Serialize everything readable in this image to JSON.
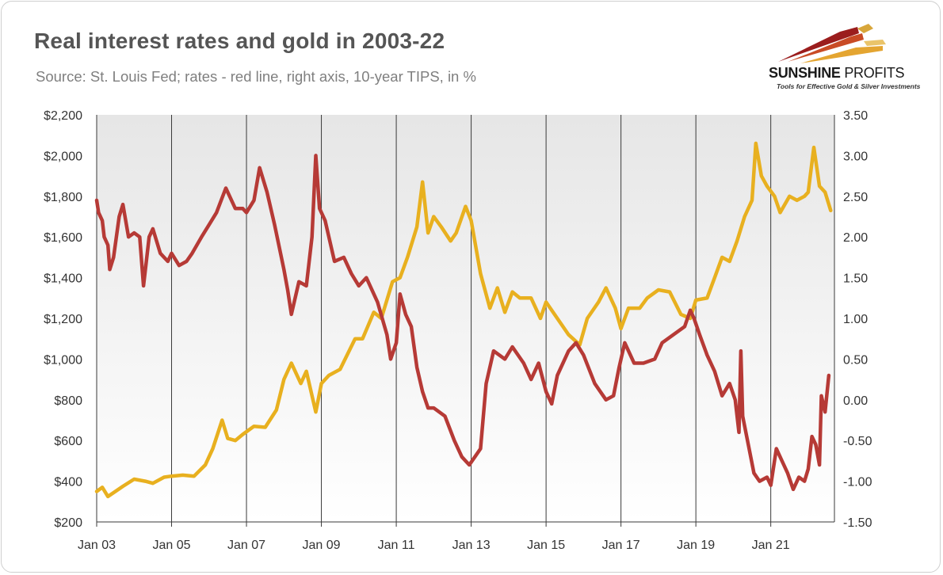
{
  "header": {
    "title": "Real interest rates and gold in 2003-22",
    "subtitle": "Source: St. Louis Fed; rates - red line, right axis, 10-year TIPS, in %"
  },
  "logo": {
    "name_bold": "SUNSHINE",
    "name_thin": " PROFITS",
    "tagline": "Tools for Effective Gold & Silver Investments"
  },
  "colors": {
    "gold_line": "#E8B01F",
    "rate_line": "#B63A36",
    "plot_bg_top": "#e9e9e9",
    "plot_bg_bottom": "#ffffff",
    "grid": "#444444"
  },
  "chart_data": {
    "type": "line",
    "title": "Real interest rates and gold in 2003-22",
    "subtitle": "Source: St. Louis Fed; rates - red line, right axis, 10-year TIPS, in %",
    "x_range": [
      2003.0,
      2022.7
    ],
    "x_ticks": [
      "Jan 03",
      "Jan 05",
      "Jan 07",
      "Jan 09",
      "Jan 11",
      "Jan 13",
      "Jan 15",
      "Jan 17",
      "Jan 19",
      "Jan 21"
    ],
    "y_left": {
      "range": [
        200,
        2200
      ],
      "ticks": [
        "$2,200",
        "$2,000",
        "$1,800",
        "$1,600",
        "$1,400",
        "$1,200",
        "$1,000",
        "$800",
        "$600",
        "$400",
        "$200"
      ]
    },
    "y_right": {
      "range": [
        -1.5,
        3.5
      ],
      "ticks": [
        "3.50",
        "3.00",
        "2.50",
        "2.00",
        "1.50",
        "1.00",
        "0.50",
        "0.00",
        "-0.50",
        "-1.00",
        "-1.50"
      ]
    },
    "grid": "vertical",
    "series": [
      {
        "axis": "left",
        "color": "#E8B01F",
        "points": [
          [
            2003.0,
            350
          ],
          [
            2003.15,
            370
          ],
          [
            2003.3,
            325
          ],
          [
            2003.5,
            350
          ],
          [
            2003.7,
            375
          ],
          [
            2004.0,
            410
          ],
          [
            2004.3,
            400
          ],
          [
            2004.5,
            390
          ],
          [
            2004.8,
            420
          ],
          [
            2005.0,
            425
          ],
          [
            2005.3,
            430
          ],
          [
            2005.6,
            425
          ],
          [
            2005.9,
            480
          ],
          [
            2006.1,
            560
          ],
          [
            2006.35,
            700
          ],
          [
            2006.5,
            610
          ],
          [
            2006.7,
            600
          ],
          [
            2006.9,
            630
          ],
          [
            2007.2,
            670
          ],
          [
            2007.5,
            665
          ],
          [
            2007.8,
            750
          ],
          [
            2008.0,
            900
          ],
          [
            2008.2,
            980
          ],
          [
            2008.45,
            880
          ],
          [
            2008.6,
            940
          ],
          [
            2008.85,
            740
          ],
          [
            2009.0,
            880
          ],
          [
            2009.2,
            920
          ],
          [
            2009.5,
            950
          ],
          [
            2009.9,
            1100
          ],
          [
            2010.1,
            1100
          ],
          [
            2010.4,
            1230
          ],
          [
            2010.6,
            1200
          ],
          [
            2010.9,
            1380
          ],
          [
            2011.1,
            1400
          ],
          [
            2011.3,
            1500
          ],
          [
            2011.55,
            1650
          ],
          [
            2011.7,
            1870
          ],
          [
            2011.85,
            1620
          ],
          [
            2012.0,
            1700
          ],
          [
            2012.2,
            1650
          ],
          [
            2012.45,
            1580
          ],
          [
            2012.6,
            1620
          ],
          [
            2012.85,
            1750
          ],
          [
            2013.0,
            1680
          ],
          [
            2013.25,
            1420
          ],
          [
            2013.5,
            1250
          ],
          [
            2013.7,
            1350
          ],
          [
            2013.9,
            1230
          ],
          [
            2014.1,
            1330
          ],
          [
            2014.3,
            1300
          ],
          [
            2014.6,
            1300
          ],
          [
            2014.85,
            1200
          ],
          [
            2015.0,
            1280
          ],
          [
            2015.3,
            1200
          ],
          [
            2015.6,
            1120
          ],
          [
            2015.9,
            1070
          ],
          [
            2016.1,
            1200
          ],
          [
            2016.4,
            1280
          ],
          [
            2016.6,
            1350
          ],
          [
            2016.85,
            1250
          ],
          [
            2017.0,
            1150
          ],
          [
            2017.2,
            1250
          ],
          [
            2017.5,
            1250
          ],
          [
            2017.7,
            1300
          ],
          [
            2018.0,
            1340
          ],
          [
            2018.3,
            1330
          ],
          [
            2018.6,
            1220
          ],
          [
            2018.85,
            1200
          ],
          [
            2019.0,
            1290
          ],
          [
            2019.3,
            1300
          ],
          [
            2019.5,
            1400
          ],
          [
            2019.7,
            1500
          ],
          [
            2019.9,
            1480
          ],
          [
            2020.1,
            1580
          ],
          [
            2020.3,
            1700
          ],
          [
            2020.5,
            1780
          ],
          [
            2020.6,
            2060
          ],
          [
            2020.75,
            1900
          ],
          [
            2020.9,
            1850
          ],
          [
            2021.1,
            1800
          ],
          [
            2021.25,
            1720
          ],
          [
            2021.5,
            1800
          ],
          [
            2021.7,
            1780
          ],
          [
            2021.9,
            1800
          ],
          [
            2022.0,
            1820
          ],
          [
            2022.15,
            2040
          ],
          [
            2022.3,
            1850
          ],
          [
            2022.45,
            1820
          ],
          [
            2022.6,
            1730
          ]
        ]
      },
      {
        "axis": "right",
        "color": "#B63A36",
        "points": [
          [
            2003.0,
            2.45
          ],
          [
            2003.05,
            2.3
          ],
          [
            2003.15,
            2.2
          ],
          [
            2003.2,
            2.0
          ],
          [
            2003.3,
            1.9
          ],
          [
            2003.35,
            1.6
          ],
          [
            2003.45,
            1.75
          ],
          [
            2003.6,
            2.25
          ],
          [
            2003.7,
            2.4
          ],
          [
            2003.85,
            2.0
          ],
          [
            2004.0,
            2.05
          ],
          [
            2004.15,
            2.0
          ],
          [
            2004.25,
            1.4
          ],
          [
            2004.4,
            2.0
          ],
          [
            2004.5,
            2.1
          ],
          [
            2004.7,
            1.8
          ],
          [
            2004.9,
            1.7
          ],
          [
            2005.0,
            1.8
          ],
          [
            2005.2,
            1.65
          ],
          [
            2005.4,
            1.7
          ],
          [
            2005.55,
            1.8
          ],
          [
            2005.8,
            2.0
          ],
          [
            2006.0,
            2.15
          ],
          [
            2006.2,
            2.3
          ],
          [
            2006.45,
            2.6
          ],
          [
            2006.7,
            2.35
          ],
          [
            2006.9,
            2.35
          ],
          [
            2007.0,
            2.3
          ],
          [
            2007.2,
            2.45
          ],
          [
            2007.35,
            2.85
          ],
          [
            2007.55,
            2.55
          ],
          [
            2007.75,
            2.15
          ],
          [
            2008.0,
            1.6
          ],
          [
            2008.1,
            1.35
          ],
          [
            2008.2,
            1.05
          ],
          [
            2008.4,
            1.45
          ],
          [
            2008.6,
            1.4
          ],
          [
            2008.75,
            2.0
          ],
          [
            2008.85,
            3.0
          ],
          [
            2008.95,
            2.35
          ],
          [
            2009.1,
            2.2
          ],
          [
            2009.35,
            1.7
          ],
          [
            2009.6,
            1.75
          ],
          [
            2009.8,
            1.55
          ],
          [
            2010.0,
            1.4
          ],
          [
            2010.2,
            1.5
          ],
          [
            2010.5,
            1.2
          ],
          [
            2010.75,
            0.8
          ],
          [
            2010.85,
            0.5
          ],
          [
            2011.0,
            0.7
          ],
          [
            2011.1,
            1.3
          ],
          [
            2011.25,
            1.05
          ],
          [
            2011.4,
            0.9
          ],
          [
            2011.55,
            0.4
          ],
          [
            2011.7,
            0.1
          ],
          [
            2011.85,
            -0.1
          ],
          [
            2012.0,
            -0.1
          ],
          [
            2012.3,
            -0.2
          ],
          [
            2012.55,
            -0.5
          ],
          [
            2012.75,
            -0.7
          ],
          [
            2012.95,
            -0.8
          ],
          [
            2013.1,
            -0.7
          ],
          [
            2013.25,
            -0.6
          ],
          [
            2013.4,
            0.2
          ],
          [
            2013.6,
            0.6
          ],
          [
            2013.9,
            0.5
          ],
          [
            2014.1,
            0.65
          ],
          [
            2014.4,
            0.45
          ],
          [
            2014.6,
            0.25
          ],
          [
            2014.8,
            0.45
          ],
          [
            2015.0,
            0.1
          ],
          [
            2015.15,
            -0.05
          ],
          [
            2015.3,
            0.3
          ],
          [
            2015.6,
            0.6
          ],
          [
            2015.8,
            0.7
          ],
          [
            2016.0,
            0.55
          ],
          [
            2016.3,
            0.2
          ],
          [
            2016.6,
            0.0
          ],
          [
            2016.8,
            0.05
          ],
          [
            2016.95,
            0.4
          ],
          [
            2017.1,
            0.7
          ],
          [
            2017.35,
            0.45
          ],
          [
            2017.6,
            0.45
          ],
          [
            2017.9,
            0.5
          ],
          [
            2018.1,
            0.7
          ],
          [
            2018.4,
            0.8
          ],
          [
            2018.7,
            0.9
          ],
          [
            2018.85,
            1.1
          ],
          [
            2018.95,
            1.0
          ],
          [
            2019.1,
            0.8
          ],
          [
            2019.3,
            0.55
          ],
          [
            2019.5,
            0.35
          ],
          [
            2019.7,
            0.05
          ],
          [
            2019.9,
            0.2
          ],
          [
            2020.05,
            0.0
          ],
          [
            2020.15,
            -0.4
          ],
          [
            2020.2,
            0.6
          ],
          [
            2020.25,
            -0.2
          ],
          [
            2020.4,
            -0.55
          ],
          [
            2020.55,
            -0.9
          ],
          [
            2020.7,
            -1.0
          ],
          [
            2020.9,
            -0.95
          ],
          [
            2021.0,
            -1.05
          ],
          [
            2021.15,
            -0.6
          ],
          [
            2021.3,
            -0.75
          ],
          [
            2021.45,
            -0.9
          ],
          [
            2021.6,
            -1.1
          ],
          [
            2021.75,
            -0.95
          ],
          [
            2021.9,
            -1.0
          ],
          [
            2022.0,
            -0.85
          ],
          [
            2022.1,
            -0.45
          ],
          [
            2022.2,
            -0.55
          ],
          [
            2022.3,
            -0.8
          ],
          [
            2022.35,
            0.05
          ],
          [
            2022.45,
            -0.15
          ],
          [
            2022.55,
            0.3
          ]
        ]
      }
    ]
  }
}
